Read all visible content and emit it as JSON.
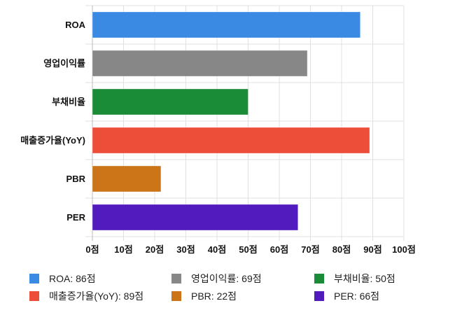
{
  "chart_data": {
    "type": "bar",
    "orientation": "horizontal",
    "categories": [
      "ROA",
      "영업이익률",
      "부채비율",
      "매출증가율(YoY)",
      "PBR",
      "PER"
    ],
    "values": [
      86,
      69,
      50,
      89,
      22,
      66
    ],
    "colors": [
      "#3a8ae4",
      "#878787",
      "#1a8c37",
      "#ec4e3a",
      "#cb7418",
      "#521bbd"
    ],
    "unit": "점",
    "xlim": [
      0,
      100
    ],
    "x_ticks": [
      "0점",
      "10점",
      "20점",
      "30점",
      "40점",
      "50점",
      "60점",
      "70점",
      "80점",
      "90점",
      "100점"
    ],
    "grid": true,
    "legend_position": "bottom",
    "legend": [
      "ROA: 86점",
      "영업이익률: 69점",
      "부채비율: 50점",
      "매출증가율(YoY): 89점",
      "PBR: 22점",
      "PER: 66점"
    ]
  }
}
